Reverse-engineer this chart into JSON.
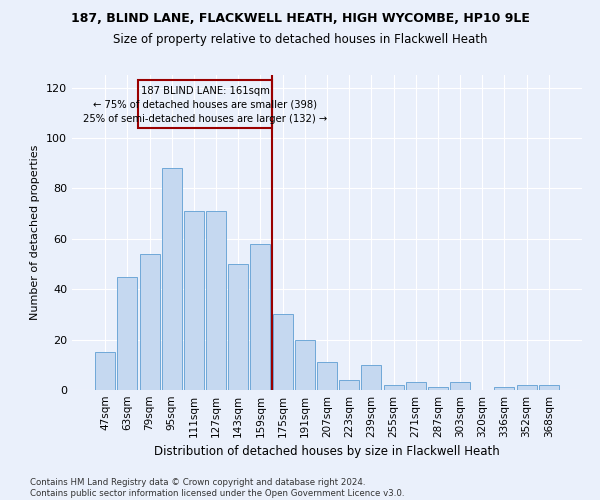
{
  "title": "187, BLIND LANE, FLACKWELL HEATH, HIGH WYCOMBE, HP10 9LE",
  "subtitle": "Size of property relative to detached houses in Flackwell Heath",
  "xlabel": "Distribution of detached houses by size in Flackwell Heath",
  "ylabel": "Number of detached properties",
  "footer": "Contains HM Land Registry data © Crown copyright and database right 2024.\nContains public sector information licensed under the Open Government Licence v3.0.",
  "categories": [
    "47sqm",
    "63sqm",
    "79sqm",
    "95sqm",
    "111sqm",
    "127sqm",
    "143sqm",
    "159sqm",
    "175sqm",
    "191sqm",
    "207sqm",
    "223sqm",
    "239sqm",
    "255sqm",
    "271sqm",
    "287sqm",
    "303sqm",
    "320sqm",
    "336sqm",
    "352sqm",
    "368sqm"
  ],
  "values": [
    15,
    45,
    54,
    88,
    71,
    71,
    50,
    58,
    30,
    20,
    11,
    4,
    10,
    2,
    3,
    1,
    3,
    0,
    1,
    2,
    2
  ],
  "bar_color": "#c5d8f0",
  "bar_edge_color": "#6fa8d8",
  "background_color": "#eaf0fb",
  "grid_color": "#ffffff",
  "vline_color": "#990000",
  "annotation_line1": "187 BLIND LANE: 161sqm",
  "annotation_line2": "← 75% of detached houses are smaller (398)",
  "annotation_line3": "25% of semi-detached houses are larger (132) →",
  "annotation_box_color": "#990000",
  "ylim": [
    0,
    125
  ],
  "yticks": [
    0,
    20,
    40,
    60,
    80,
    100,
    120
  ]
}
